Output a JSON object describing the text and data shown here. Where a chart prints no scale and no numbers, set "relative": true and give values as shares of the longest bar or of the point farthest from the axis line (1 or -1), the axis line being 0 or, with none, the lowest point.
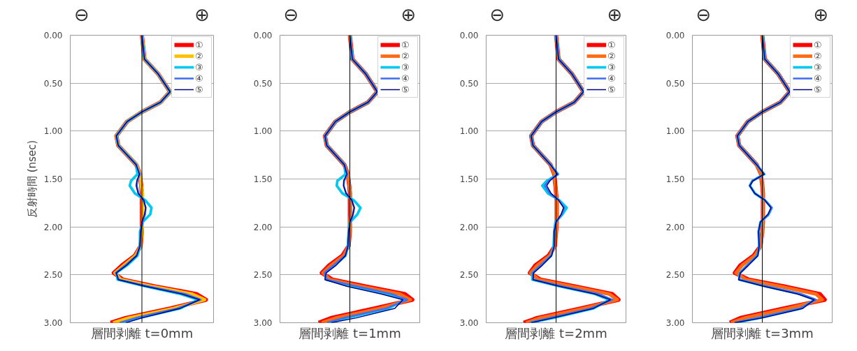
{
  "chart_data": [
    {
      "type": "line",
      "orientation": "horizontal",
      "relative": true,
      "ylabel": "反射時間 (nsec)",
      "xlabel": "層間剥離 t=0mm",
      "annotations": [
        "⊖",
        "⊕"
      ],
      "legend": "top right",
      "grid": "y",
      "ylim": [
        3,
        0
      ],
      "yticks": [
        {
          "value": 0,
          "label": "0.00"
        },
        {
          "value": 0.5,
          "label": "0.50"
        },
        {
          "value": 1,
          "label": "1.00"
        },
        {
          "value": 1.5,
          "label": "1.50"
        },
        {
          "value": 2,
          "label": "2.00"
        },
        {
          "value": 2.5,
          "label": "2.50"
        },
        {
          "value": 3,
          "label": "3.00"
        }
      ],
      "x": [
        0,
        0.25,
        0.4,
        0.59,
        0.7,
        0.8,
        0.9,
        1.05,
        1.15,
        1.25,
        1.35,
        1.45,
        1.52,
        1.57,
        1.65,
        1.72,
        1.8,
        1.87,
        1.95,
        2.05,
        2.2,
        2.3,
        2.4,
        2.48,
        2.55,
        2.62,
        2.7,
        2.76,
        2.85,
        2.95,
        3.0
      ],
      "series": [
        {
          "name": "①",
          "color": "#ff0000",
          "values": [
            0,
            0.04,
            0.25,
            0.44,
            0.29,
            0,
            -0.23,
            -0.4,
            -0.37,
            -0.23,
            -0.09,
            -0.03,
            -0.02,
            -0.01,
            0,
            0,
            0,
            0,
            0,
            0,
            -0.02,
            -0.11,
            -0.31,
            -0.44,
            -0.3,
            0.2,
            0.85,
            1.0,
            0.45,
            -0.25,
            -0.49
          ]
        },
        {
          "name": "②",
          "color": "#ffc000",
          "values": [
            0,
            0.04,
            0.25,
            0.44,
            0.29,
            0,
            -0.23,
            -0.4,
            -0.37,
            -0.23,
            -0.09,
            -0.03,
            -0.02,
            -0.01,
            0.01,
            0.01,
            0.01,
            0.01,
            0.01,
            0,
            -0.02,
            -0.1,
            -0.28,
            -0.42,
            -0.33,
            0.15,
            0.78,
            0.98,
            0.5,
            -0.2,
            -0.45
          ]
        },
        {
          "name": "③",
          "color": "#00c8f0",
          "values": [
            0,
            0.04,
            0.25,
            0.44,
            0.29,
            0,
            -0.23,
            -0.4,
            -0.37,
            -0.23,
            -0.09,
            -0.07,
            -0.17,
            -0.19,
            -0.11,
            0.05,
            0.15,
            0.13,
            0.01,
            -0.03,
            -0.03,
            -0.07,
            -0.23,
            -0.4,
            -0.38,
            0.05,
            0.6,
            0.88,
            0.6,
            -0.05,
            -0.3
          ]
        },
        {
          "name": "④",
          "color": "#4070f0",
          "values": [
            0,
            0.04,
            0.25,
            0.44,
            0.29,
            0,
            -0.23,
            -0.4,
            -0.37,
            -0.23,
            -0.09,
            -0.03,
            -0.07,
            -0.08,
            -0.05,
            0.02,
            0.06,
            0.05,
            0.01,
            -0.02,
            -0.03,
            -0.09,
            -0.26,
            -0.41,
            -0.36,
            0.1,
            0.68,
            0.92,
            0.55,
            -0.1,
            -0.35
          ]
        },
        {
          "name": "⑤",
          "color": "#000080",
          "values": [
            0,
            0.04,
            0.25,
            0.44,
            0.29,
            0,
            -0.23,
            -0.4,
            -0.37,
            -0.23,
            -0.09,
            -0.04,
            -0.08,
            -0.09,
            -0.06,
            0.03,
            0.06,
            0.04,
            0.0,
            -0.02,
            -0.03,
            -0.08,
            -0.24,
            -0.4,
            -0.37,
            0.05,
            0.62,
            0.9,
            0.6,
            0,
            -0.25
          ]
        }
      ]
    },
    {
      "type": "line",
      "orientation": "horizontal",
      "relative": true,
      "xlabel": "層間剥離 t=1mm",
      "annotations": [
        "⊖",
        "⊕"
      ],
      "legend": "top right",
      "grid": "y",
      "ylim": [
        3,
        0
      ],
      "yticks": [
        {
          "value": 0,
          "label": "0.00"
        },
        {
          "value": 0.5,
          "label": "0.50"
        },
        {
          "value": 1,
          "label": "1.00"
        },
        {
          "value": 1.5,
          "label": "1.50"
        },
        {
          "value": 2,
          "label": "2.00"
        },
        {
          "value": 2.5,
          "label": "2.50"
        },
        {
          "value": 3,
          "label": "3.00"
        }
      ],
      "x": [
        0,
        0.25,
        0.4,
        0.59,
        0.7,
        0.8,
        0.9,
        1.05,
        1.15,
        1.25,
        1.35,
        1.45,
        1.52,
        1.57,
        1.65,
        1.72,
        1.8,
        1.87,
        1.95,
        2.05,
        2.2,
        2.3,
        2.4,
        2.48,
        2.55,
        2.62,
        2.7,
        2.76,
        2.85,
        2.95,
        3.0
      ],
      "series": [
        {
          "name": "①",
          "color": "#ff0000",
          "values": [
            0,
            0.04,
            0.25,
            0.44,
            0.29,
            0,
            -0.23,
            -0.4,
            -0.37,
            -0.23,
            -0.09,
            -0.03,
            -0.02,
            -0.01,
            0,
            0,
            0,
            0,
            0,
            0,
            -0.02,
            -0.12,
            -0.33,
            -0.45,
            -0.28,
            0.25,
            0.88,
            1.0,
            0.4,
            -0.3,
            -0.5
          ]
        },
        {
          "name": "②",
          "color": "#ff6a13",
          "values": [
            0,
            0.04,
            0.25,
            0.44,
            0.29,
            0,
            -0.23,
            -0.4,
            -0.37,
            -0.23,
            -0.09,
            -0.03,
            -0.02,
            -0.01,
            0.01,
            0.01,
            0.01,
            0.01,
            0,
            0,
            -0.02,
            -0.1,
            -0.3,
            -0.43,
            -0.32,
            0.18,
            0.8,
            0.97,
            0.48,
            -0.22,
            -0.45
          ]
        },
        {
          "name": "③",
          "color": "#00c8f0",
          "values": [
            0,
            0.04,
            0.25,
            0.44,
            0.29,
            0,
            -0.23,
            -0.4,
            -0.37,
            -0.23,
            -0.09,
            -0.07,
            -0.2,
            -0.21,
            -0.12,
            0.06,
            0.17,
            0.12,
            0.0,
            -0.02,
            -0.03,
            -0.07,
            -0.24,
            -0.4,
            -0.38,
            0.05,
            0.6,
            0.88,
            0.62,
            -0.05,
            -0.35
          ]
        },
        {
          "name": "④",
          "color": "#4070f0",
          "values": [
            0,
            0.04,
            0.25,
            0.44,
            0.29,
            0,
            -0.23,
            -0.4,
            -0.37,
            -0.23,
            -0.09,
            -0.04,
            -0.09,
            -0.1,
            -0.06,
            0.03,
            0.07,
            0.05,
            0.01,
            -0.02,
            -0.03,
            -0.08,
            -0.26,
            -0.41,
            -0.37,
            0.1,
            0.66,
            0.92,
            0.58,
            -0.1,
            -0.37
          ]
        },
        {
          "name": "⑤",
          "color": "#000080",
          "values": [
            0,
            0.04,
            0.25,
            0.44,
            0.29,
            0,
            -0.23,
            -0.4,
            -0.37,
            -0.23,
            -0.09,
            -0.05,
            -0.1,
            -0.1,
            -0.06,
            0.03,
            0.07,
            0.05,
            0.0,
            -0.02,
            -0.03,
            -0.07,
            -0.22,
            -0.38,
            -0.4,
            -0.05,
            0.5,
            0.85,
            0.72,
            0.1,
            -0.3
          ]
        }
      ]
    },
    {
      "type": "line",
      "orientation": "horizontal",
      "relative": true,
      "xlabel": "層間剥離 t=2mm",
      "annotations": [
        "⊖",
        "⊕"
      ],
      "legend": "top right",
      "grid": "y",
      "ylim": [
        3,
        0
      ],
      "yticks": [
        {
          "value": 0,
          "label": "0.00"
        },
        {
          "value": 0.5,
          "label": "0.50"
        },
        {
          "value": 1,
          "label": "1.00"
        },
        {
          "value": 1.5,
          "label": "1.50"
        },
        {
          "value": 2,
          "label": "2.00"
        },
        {
          "value": 2.5,
          "label": "2.50"
        },
        {
          "value": 3,
          "label": "3.00"
        }
      ],
      "x": [
        0,
        0.25,
        0.4,
        0.59,
        0.7,
        0.8,
        0.9,
        1.05,
        1.15,
        1.25,
        1.35,
        1.45,
        1.52,
        1.57,
        1.65,
        1.72,
        1.8,
        1.87,
        1.95,
        2.05,
        2.2,
        2.3,
        2.4,
        2.48,
        2.55,
        2.62,
        2.7,
        2.76,
        2.85,
        2.95,
        3.0
      ],
      "series": [
        {
          "name": "①",
          "color": "#ff0000",
          "values": [
            0,
            0.04,
            0.25,
            0.44,
            0.29,
            0,
            -0.23,
            -0.4,
            -0.37,
            -0.23,
            -0.09,
            -0.03,
            -0.02,
            -0.01,
            0,
            0.01,
            0.01,
            0.01,
            0.01,
            0,
            -0.02,
            -0.12,
            -0.33,
            -0.42,
            -0.25,
            0.3,
            0.9,
            1.0,
            0.4,
            -0.3,
            -0.52
          ]
        },
        {
          "name": "②",
          "color": "#ff6a13",
          "values": [
            0,
            0.04,
            0.25,
            0.44,
            0.29,
            0,
            -0.23,
            -0.4,
            -0.37,
            -0.23,
            -0.09,
            -0.03,
            -0.02,
            -0.01,
            0,
            0.01,
            0.01,
            0.01,
            0.01,
            0,
            -0.02,
            -0.1,
            -0.3,
            -0.41,
            -0.28,
            0.25,
            0.85,
            0.98,
            0.45,
            -0.25,
            -0.48
          ]
        },
        {
          "name": "③",
          "color": "#00c8f0",
          "values": [
            0,
            0.04,
            0.25,
            0.44,
            0.29,
            0,
            -0.23,
            -0.4,
            -0.37,
            -0.23,
            -0.09,
            0.03,
            -0.15,
            -0.22,
            -0.13,
            0.05,
            0.17,
            0.1,
            -0.01,
            -0.03,
            -0.04,
            -0.08,
            -0.24,
            -0.38,
            -0.38,
            0.05,
            0.62,
            0.85,
            0.6,
            -0.05,
            -0.42
          ]
        },
        {
          "name": "④",
          "color": "#4070f0",
          "values": [
            0,
            0.04,
            0.25,
            0.44,
            0.29,
            0,
            -0.23,
            -0.4,
            -0.37,
            -0.23,
            -0.09,
            0.03,
            -0.12,
            -0.18,
            -0.1,
            0.04,
            0.13,
            0.09,
            0.0,
            -0.03,
            -0.03,
            -0.08,
            -0.25,
            -0.38,
            -0.36,
            0.1,
            0.68,
            0.9,
            0.55,
            -0.1,
            -0.42
          ]
        },
        {
          "name": "⑤",
          "color": "#000080",
          "values": [
            0,
            0.04,
            0.25,
            0.44,
            0.29,
            0,
            -0.23,
            -0.4,
            -0.37,
            -0.23,
            -0.09,
            0.02,
            -0.1,
            -0.15,
            -0.08,
            0.04,
            0.12,
            0.08,
            0.0,
            -0.03,
            -0.03,
            -0.07,
            -0.22,
            -0.36,
            -0.37,
            0.05,
            0.62,
            0.87,
            0.6,
            -0.05,
            -0.4
          ]
        }
      ]
    },
    {
      "type": "line",
      "orientation": "horizontal",
      "relative": true,
      "xlabel": "層間剥離 t=3mm",
      "annotations": [
        "⊖",
        "⊕"
      ],
      "legend": "top right",
      "grid": "y",
      "ylim": [
        3,
        0
      ],
      "yticks": [
        {
          "value": 0,
          "label": "0.00"
        },
        {
          "value": 0.5,
          "label": "0.50"
        },
        {
          "value": 1,
          "label": "1.00"
        },
        {
          "value": 1.5,
          "label": "1.50"
        },
        {
          "value": 2,
          "label": "2.00"
        },
        {
          "value": 2.5,
          "label": "2.50"
        },
        {
          "value": 3,
          "label": "3.00"
        }
      ],
      "x": [
        0,
        0.25,
        0.4,
        0.59,
        0.7,
        0.8,
        0.9,
        1.05,
        1.15,
        1.25,
        1.35,
        1.45,
        1.52,
        1.57,
        1.65,
        1.72,
        1.8,
        1.87,
        1.95,
        2.05,
        2.2,
        2.3,
        2.4,
        2.48,
        2.55,
        2.62,
        2.7,
        2.76,
        2.85,
        2.95,
        3.0
      ],
      "series": [
        {
          "name": "①",
          "color": "#ff0000",
          "values": [
            0,
            0.04,
            0.25,
            0.44,
            0.29,
            0,
            -0.23,
            -0.4,
            -0.37,
            -0.23,
            -0.09,
            -0.02,
            -0.01,
            0,
            0.01,
            0.01,
            0.01,
            0.01,
            0.01,
            0,
            -0.03,
            -0.14,
            -0.35,
            -0.44,
            -0.22,
            0.35,
            0.92,
            1.0,
            0.35,
            -0.35,
            -0.52
          ]
        },
        {
          "name": "②",
          "color": "#ff6a13",
          "values": [
            0,
            0.04,
            0.25,
            0.44,
            0.29,
            0,
            -0.23,
            -0.4,
            -0.37,
            -0.23,
            -0.09,
            -0.02,
            -0.01,
            0,
            0.01,
            0.01,
            0.01,
            0.01,
            0.01,
            0,
            -0.02,
            -0.12,
            -0.32,
            -0.42,
            -0.26,
            0.28,
            0.86,
            0.96,
            0.42,
            -0.28,
            -0.5
          ]
        },
        {
          "name": "③",
          "color": "#00c8f0",
          "values": [
            0,
            0.04,
            0.25,
            0.44,
            0.29,
            0,
            -0.23,
            -0.4,
            -0.37,
            -0.23,
            -0.09,
            0.03,
            -0.16,
            -0.2,
            -0.12,
            0.04,
            0.15,
            0.1,
            -0.03,
            -0.06,
            -0.05,
            -0.08,
            -0.24,
            -0.36,
            -0.37,
            0.05,
            0.6,
            0.84,
            0.62,
            -0.05,
            -0.43
          ]
        },
        {
          "name": "④",
          "color": "#4070f0",
          "values": [
            0,
            0.04,
            0.25,
            0.44,
            0.29,
            0,
            -0.23,
            -0.4,
            -0.37,
            -0.23,
            -0.09,
            0.03,
            -0.16,
            -0.2,
            -0.12,
            0.04,
            0.15,
            0.1,
            -0.03,
            -0.06,
            -0.05,
            -0.08,
            -0.24,
            -0.36,
            -0.37,
            0.07,
            0.62,
            0.86,
            0.6,
            -0.08,
            -0.45
          ]
        },
        {
          "name": "⑤",
          "color": "#000080",
          "values": [
            0,
            0.04,
            0.25,
            0.44,
            0.29,
            0,
            -0.23,
            -0.4,
            -0.37,
            -0.23,
            -0.09,
            0.03,
            -0.15,
            -0.2,
            -0.12,
            0.04,
            0.14,
            0.09,
            -0.03,
            -0.06,
            -0.05,
            -0.07,
            -0.22,
            -0.35,
            -0.38,
            0.02,
            0.56,
            0.83,
            0.65,
            0.0,
            -0.44
          ]
        }
      ]
    }
  ]
}
